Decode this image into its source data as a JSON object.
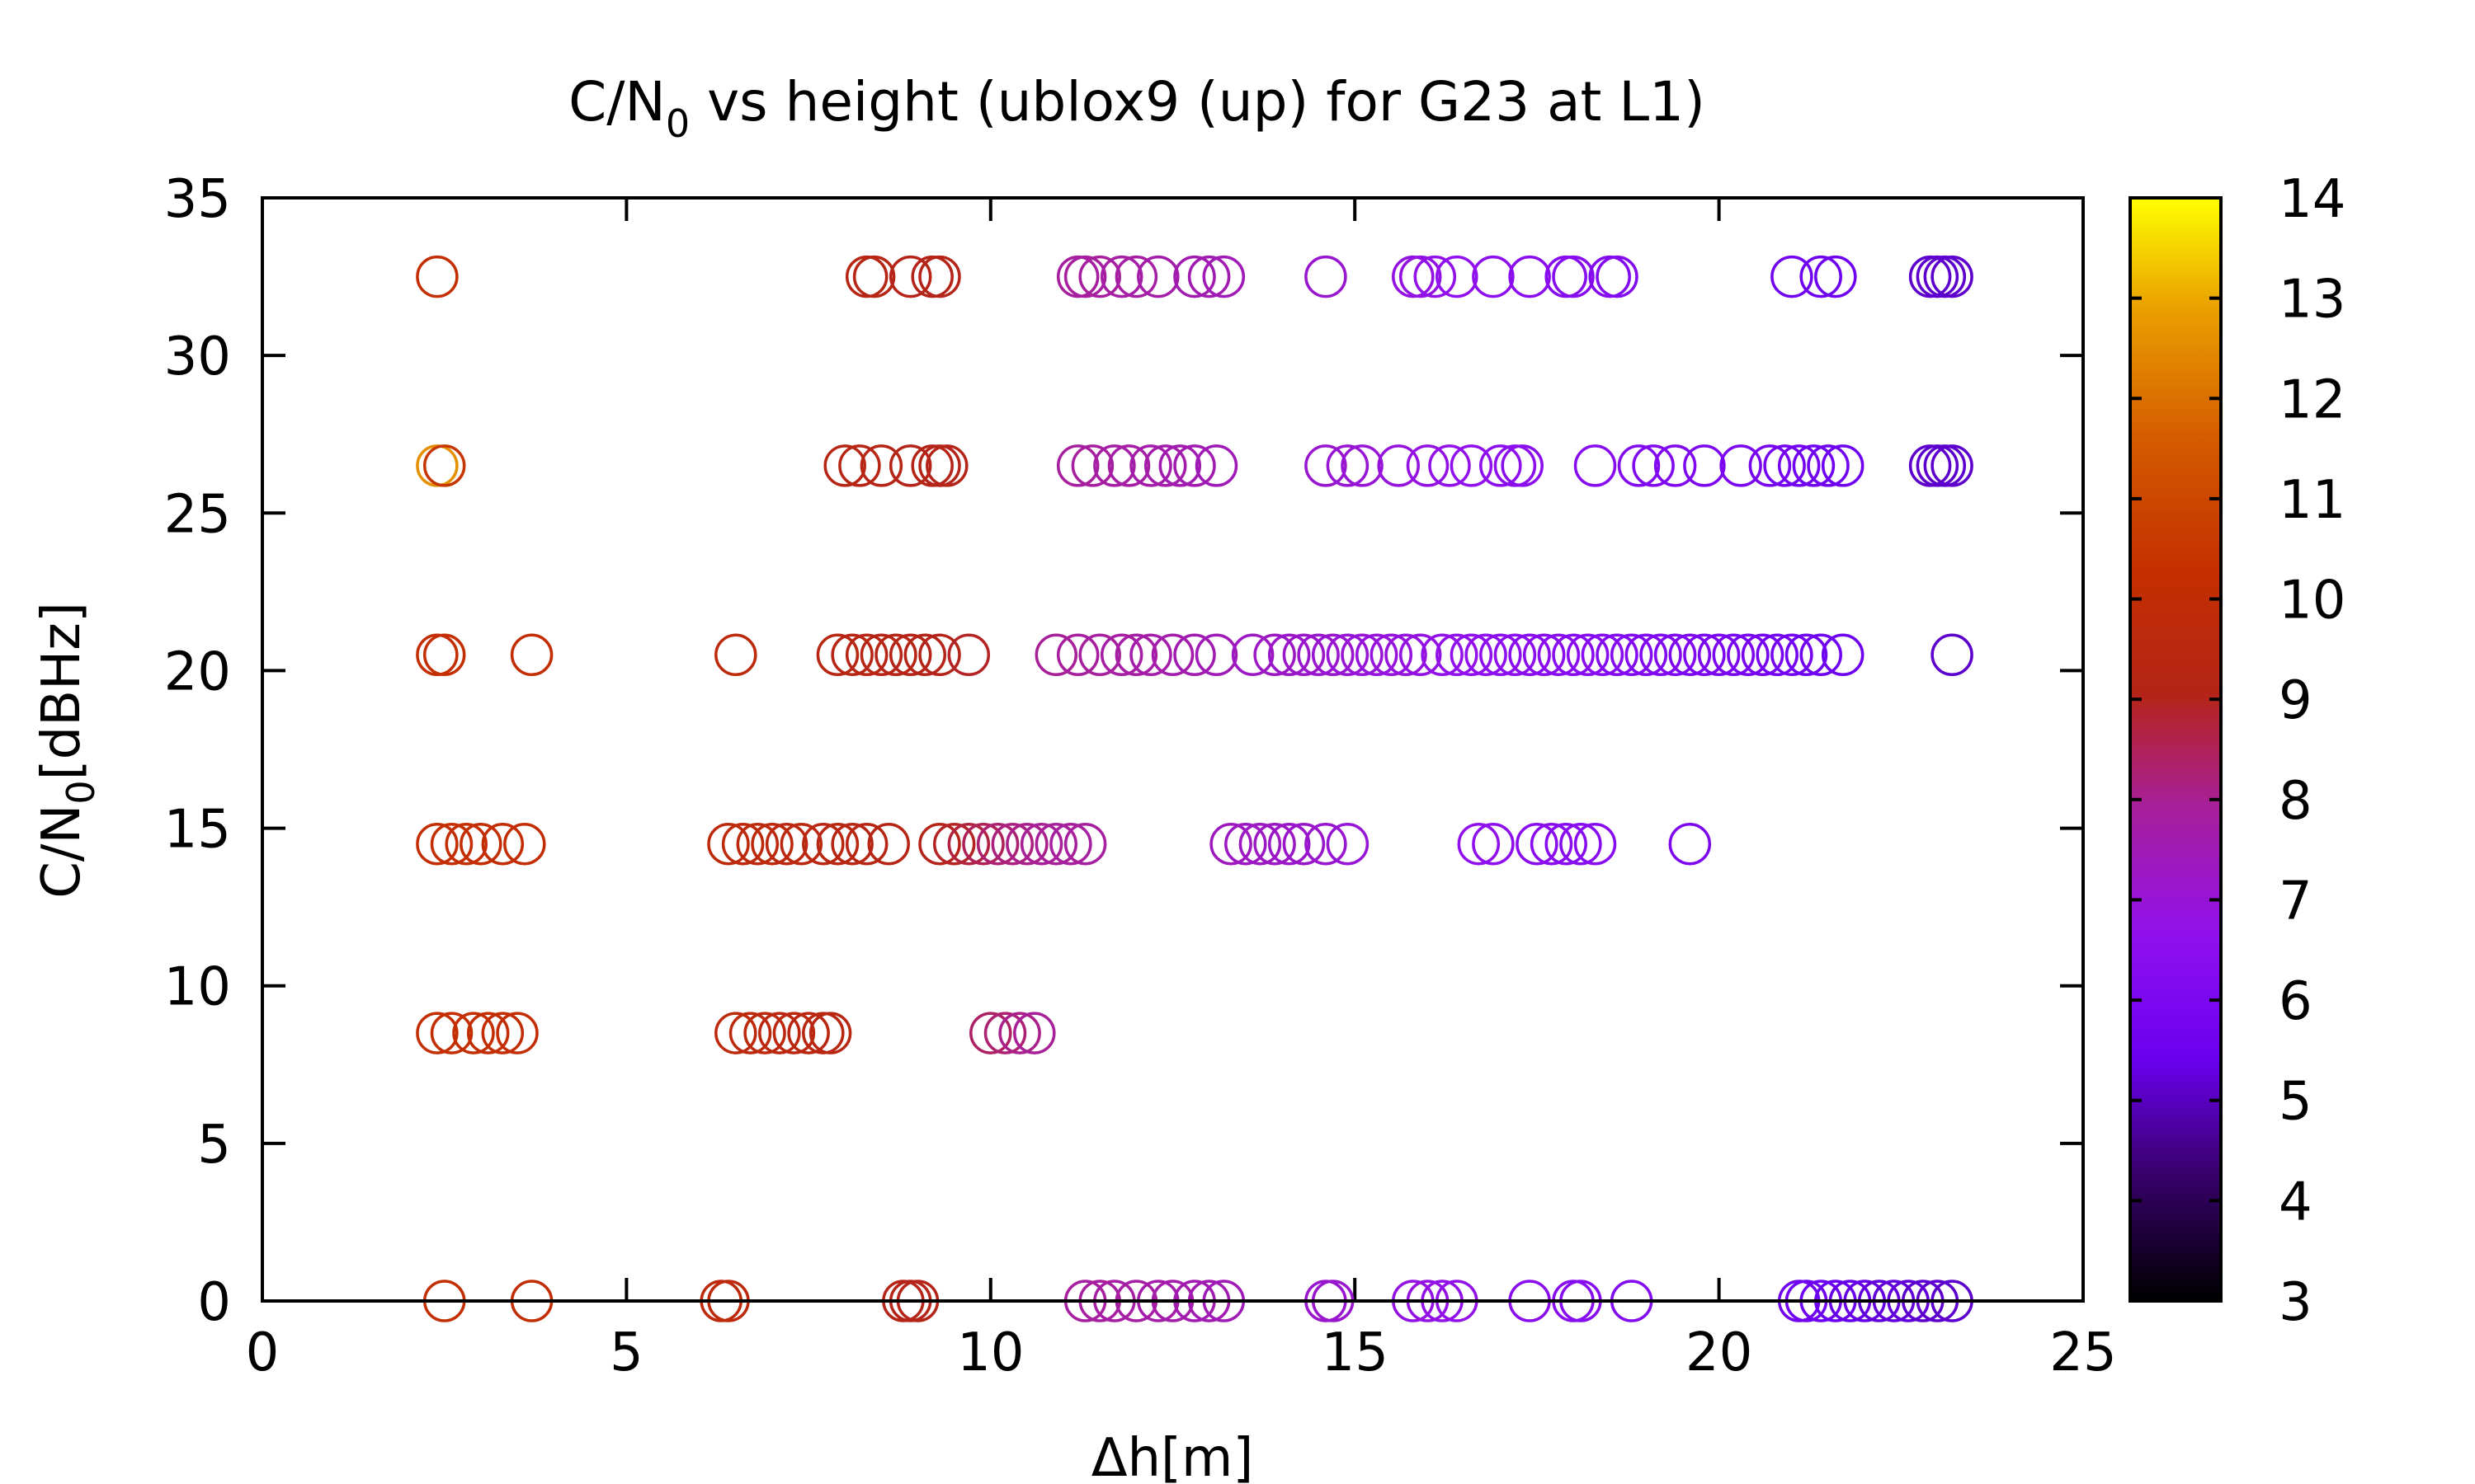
{
  "chart_data": {
    "type": "scatter",
    "title": {
      "main": "C/N",
      "sub": "0",
      "rest": " vs height (ublox9 (up) for G23 at L1)"
    },
    "xlabel": "Δh[m]",
    "ylabel": {
      "main": "C/N",
      "sub": "0",
      "rest": "[dBHz]"
    },
    "xlim": [
      0,
      25
    ],
    "ylim": [
      0,
      35
    ],
    "xticks": [
      0,
      5,
      10,
      15,
      20,
      25
    ],
    "yticks": [
      0,
      5,
      10,
      15,
      20,
      25,
      30,
      35
    ],
    "colorbar": {
      "min": 3,
      "max": 14,
      "ticks": [
        3,
        4,
        5,
        6,
        7,
        8,
        9,
        10,
        11,
        12,
        13,
        14
      ],
      "palette": "black-purple-red-orange-yellow"
    },
    "marker": "open-circle",
    "grid": false,
    "legend": "none",
    "series": [
      {
        "y": 32.5,
        "points": [
          [
            2.4,
            10.2
          ],
          [
            8.3,
            9.2
          ],
          [
            8.4,
            9.2
          ],
          [
            8.9,
            9.0
          ],
          [
            9.2,
            9.0
          ],
          [
            9.3,
            9.0
          ],
          [
            11.2,
            7.9
          ],
          [
            11.3,
            7.9
          ],
          [
            11.5,
            7.9
          ],
          [
            11.8,
            7.8
          ],
          [
            12.0,
            7.8
          ],
          [
            12.3,
            7.7
          ],
          [
            12.8,
            7.6
          ],
          [
            13.0,
            7.6
          ],
          [
            13.2,
            7.5
          ],
          [
            14.6,
            7.1
          ],
          [
            15.8,
            6.8
          ],
          [
            15.9,
            6.8
          ],
          [
            16.1,
            6.7
          ],
          [
            16.4,
            6.6
          ],
          [
            16.9,
            6.5
          ],
          [
            17.4,
            6.4
          ],
          [
            17.9,
            6.3
          ],
          [
            18.0,
            6.3
          ],
          [
            18.5,
            6.2
          ],
          [
            18.6,
            6.2
          ],
          [
            21.0,
            5.6
          ],
          [
            21.4,
            5.5
          ],
          [
            21.6,
            5.5
          ],
          [
            22.9,
            5.1
          ],
          [
            23.0,
            5.1
          ],
          [
            23.1,
            5.1
          ],
          [
            23.2,
            5.1
          ]
        ]
      },
      {
        "y": 26.5,
        "points": [
          [
            2.4,
            12.6
          ],
          [
            2.5,
            10.5
          ],
          [
            8.0,
            9.2
          ],
          [
            8.2,
            9.2
          ],
          [
            8.5,
            9.1
          ],
          [
            8.9,
            9.0
          ],
          [
            9.2,
            9.0
          ],
          [
            9.3,
            9.0
          ],
          [
            9.4,
            9.0
          ],
          [
            11.2,
            7.9
          ],
          [
            11.4,
            7.9
          ],
          [
            11.7,
            7.8
          ],
          [
            11.9,
            7.8
          ],
          [
            12.2,
            7.7
          ],
          [
            12.4,
            7.7
          ],
          [
            12.6,
            7.6
          ],
          [
            12.8,
            7.6
          ],
          [
            13.1,
            7.5
          ],
          [
            14.6,
            7.1
          ],
          [
            14.9,
            7.0
          ],
          [
            15.1,
            7.0
          ],
          [
            15.6,
            6.9
          ],
          [
            16.0,
            6.8
          ],
          [
            16.3,
            6.7
          ],
          [
            16.6,
            6.6
          ],
          [
            17.0,
            6.5
          ],
          [
            17.2,
            6.5
          ],
          [
            17.3,
            6.4
          ],
          [
            18.3,
            6.3
          ],
          [
            18.9,
            6.2
          ],
          [
            19.1,
            6.1
          ],
          [
            19.4,
            6.1
          ],
          [
            19.8,
            6.0
          ],
          [
            20.3,
            5.9
          ],
          [
            20.7,
            5.8
          ],
          [
            20.9,
            5.7
          ],
          [
            21.1,
            5.7
          ],
          [
            21.3,
            5.6
          ],
          [
            21.5,
            5.6
          ],
          [
            21.7,
            5.5
          ],
          [
            22.9,
            5.1
          ],
          [
            23.0,
            5.1
          ],
          [
            23.1,
            5.1
          ],
          [
            23.2,
            5.1
          ]
        ]
      },
      {
        "y": 20.5,
        "points": [
          [
            2.4,
            10.2
          ],
          [
            2.5,
            10.2
          ],
          [
            3.7,
            10.1
          ],
          [
            6.5,
            9.7
          ],
          [
            7.9,
            9.3
          ],
          [
            8.1,
            9.2
          ],
          [
            8.3,
            9.2
          ],
          [
            8.5,
            9.1
          ],
          [
            8.7,
            9.1
          ],
          [
            8.9,
            9.0
          ],
          [
            9.1,
            9.0
          ],
          [
            9.3,
            9.0
          ],
          [
            9.7,
            8.9
          ],
          [
            10.9,
            8.0
          ],
          [
            11.2,
            7.9
          ],
          [
            11.5,
            7.9
          ],
          [
            11.8,
            7.8
          ],
          [
            12.0,
            7.8
          ],
          [
            12.2,
            7.7
          ],
          [
            12.5,
            7.7
          ],
          [
            12.8,
            7.6
          ],
          [
            13.1,
            7.5
          ],
          [
            13.6,
            7.3
          ],
          [
            13.9,
            7.3
          ],
          [
            14.1,
            7.2
          ],
          [
            14.3,
            7.2
          ],
          [
            14.5,
            7.1
          ],
          [
            14.7,
            7.1
          ],
          [
            14.9,
            7.0
          ],
          [
            15.1,
            7.0
          ],
          [
            15.3,
            6.9
          ],
          [
            15.5,
            6.9
          ],
          [
            15.7,
            6.9
          ],
          [
            15.9,
            6.8
          ],
          [
            16.2,
            6.7
          ],
          [
            16.4,
            6.7
          ],
          [
            16.6,
            6.6
          ],
          [
            16.8,
            6.6
          ],
          [
            17.0,
            6.5
          ],
          [
            17.2,
            6.5
          ],
          [
            17.4,
            6.4
          ],
          [
            17.6,
            6.4
          ],
          [
            17.8,
            6.4
          ],
          [
            18.0,
            6.3
          ],
          [
            18.2,
            6.3
          ],
          [
            18.4,
            6.3
          ],
          [
            18.6,
            6.2
          ],
          [
            18.8,
            6.2
          ],
          [
            19.0,
            6.1
          ],
          [
            19.2,
            6.1
          ],
          [
            19.4,
            6.1
          ],
          [
            19.6,
            6.0
          ],
          [
            19.8,
            6.0
          ],
          [
            20.0,
            5.9
          ],
          [
            20.2,
            5.9
          ],
          [
            20.4,
            5.8
          ],
          [
            20.6,
            5.8
          ],
          [
            20.8,
            5.7
          ],
          [
            21.0,
            5.7
          ],
          [
            21.2,
            5.6
          ],
          [
            21.4,
            5.6
          ],
          [
            21.7,
            5.5
          ],
          [
            23.2,
            5.1
          ]
        ]
      },
      {
        "y": 14.5,
        "points": [
          [
            2.4,
            10.2
          ],
          [
            2.6,
            10.2
          ],
          [
            2.8,
            10.2
          ],
          [
            3.0,
            10.1
          ],
          [
            3.3,
            10.1
          ],
          [
            3.6,
            10.1
          ],
          [
            6.4,
            9.7
          ],
          [
            6.6,
            9.7
          ],
          [
            6.8,
            9.6
          ],
          [
            7.0,
            9.6
          ],
          [
            7.2,
            9.5
          ],
          [
            7.4,
            9.5
          ],
          [
            7.7,
            9.4
          ],
          [
            7.9,
            9.3
          ],
          [
            8.1,
            9.2
          ],
          [
            8.3,
            9.2
          ],
          [
            8.6,
            9.1
          ],
          [
            9.3,
            9.0
          ],
          [
            9.5,
            8.9
          ],
          [
            9.7,
            8.7
          ],
          [
            9.9,
            8.5
          ],
          [
            10.1,
            8.3
          ],
          [
            10.3,
            8.2
          ],
          [
            10.5,
            8.1
          ],
          [
            10.7,
            8.0
          ],
          [
            10.9,
            8.0
          ],
          [
            11.1,
            7.9
          ],
          [
            11.3,
            7.9
          ],
          [
            13.3,
            7.4
          ],
          [
            13.5,
            7.3
          ],
          [
            13.7,
            7.3
          ],
          [
            13.9,
            7.3
          ],
          [
            14.1,
            7.2
          ],
          [
            14.3,
            7.2
          ],
          [
            14.6,
            7.1
          ],
          [
            14.9,
            7.0
          ],
          [
            16.7,
            6.6
          ],
          [
            16.9,
            6.5
          ],
          [
            17.5,
            6.4
          ],
          [
            17.7,
            6.4
          ],
          [
            17.9,
            6.3
          ],
          [
            18.1,
            6.3
          ],
          [
            18.3,
            6.3
          ],
          [
            19.6,
            6.0
          ]
        ]
      },
      {
        "y": 8.5,
        "points": [
          [
            2.4,
            10.2
          ],
          [
            2.6,
            10.2
          ],
          [
            2.9,
            10.2
          ],
          [
            3.1,
            10.1
          ],
          [
            3.3,
            10.1
          ],
          [
            3.5,
            10.1
          ],
          [
            6.5,
            9.7
          ],
          [
            6.7,
            9.6
          ],
          [
            6.9,
            9.6
          ],
          [
            7.1,
            9.5
          ],
          [
            7.3,
            9.5
          ],
          [
            7.5,
            9.4
          ],
          [
            7.7,
            9.4
          ],
          [
            7.8,
            9.3
          ],
          [
            10.0,
            8.4
          ],
          [
            10.2,
            8.3
          ],
          [
            10.4,
            8.1
          ],
          [
            10.6,
            8.0
          ]
        ]
      },
      {
        "y": 0,
        "points": [
          [
            2.5,
            10.2
          ],
          [
            3.7,
            10.1
          ],
          [
            6.3,
            9.7
          ],
          [
            6.4,
            9.7
          ],
          [
            8.8,
            9.0
          ],
          [
            8.9,
            9.0
          ],
          [
            9.0,
            9.0
          ],
          [
            11.3,
            7.9
          ],
          [
            11.5,
            7.9
          ],
          [
            11.7,
            7.8
          ],
          [
            12.0,
            7.8
          ],
          [
            12.3,
            7.7
          ],
          [
            12.5,
            7.7
          ],
          [
            12.8,
            7.6
          ],
          [
            13.0,
            7.6
          ],
          [
            13.2,
            7.5
          ],
          [
            14.6,
            7.1
          ],
          [
            14.7,
            7.1
          ],
          [
            15.8,
            6.8
          ],
          [
            16.0,
            6.8
          ],
          [
            16.2,
            6.7
          ],
          [
            16.4,
            6.7
          ],
          [
            17.4,
            6.4
          ],
          [
            18.0,
            6.3
          ],
          [
            18.1,
            6.3
          ],
          [
            18.8,
            6.2
          ],
          [
            21.1,
            5.6
          ],
          [
            21.2,
            5.6
          ],
          [
            21.4,
            5.5
          ],
          [
            21.6,
            5.4
          ],
          [
            21.8,
            5.3
          ],
          [
            22.0,
            5.3
          ],
          [
            22.2,
            5.2
          ],
          [
            22.4,
            5.2
          ],
          [
            22.6,
            5.2
          ],
          [
            22.8,
            5.1
          ],
          [
            23.0,
            5.1
          ],
          [
            23.2,
            5.1
          ]
        ]
      }
    ]
  }
}
